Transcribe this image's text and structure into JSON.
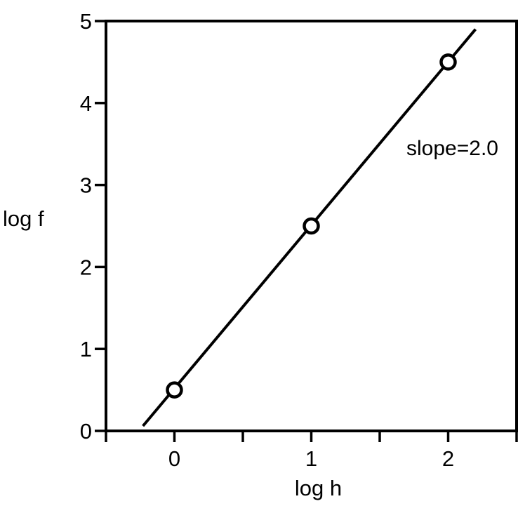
{
  "chart_data": {
    "type": "scatter",
    "title": "",
    "xlabel": "log h",
    "ylabel": "log f",
    "xlim": [
      -0.5,
      2.5
    ],
    "ylim": [
      0,
      5
    ],
    "xticks": [
      0,
      1,
      2
    ],
    "xtick_labels": [
      "0",
      "1",
      "2"
    ],
    "xticks_minor": [
      -0.5,
      0.5,
      1.5,
      2.5
    ],
    "yticks": [
      0,
      1,
      2,
      3,
      4,
      5
    ],
    "ytick_labels": [
      "0",
      "1",
      "2",
      "3",
      "4",
      "5"
    ],
    "grid": false,
    "legend": "none",
    "series": [
      {
        "kind": "points",
        "marker": "open-circle",
        "x": [
          0,
          1,
          2
        ],
        "y": [
          0.5,
          2.5,
          4.5
        ]
      },
      {
        "kind": "fit-line",
        "x": [
          -0.23,
          2.2
        ],
        "y": [
          0.06,
          4.9
        ]
      }
    ],
    "annotations": [
      {
        "text": "slope=2.0",
        "x": 2.0,
        "y": 3.45
      }
    ],
    "colors": {
      "ink": "#000000",
      "marker_fill": "#ffffff",
      "background": "#ffffff"
    }
  }
}
